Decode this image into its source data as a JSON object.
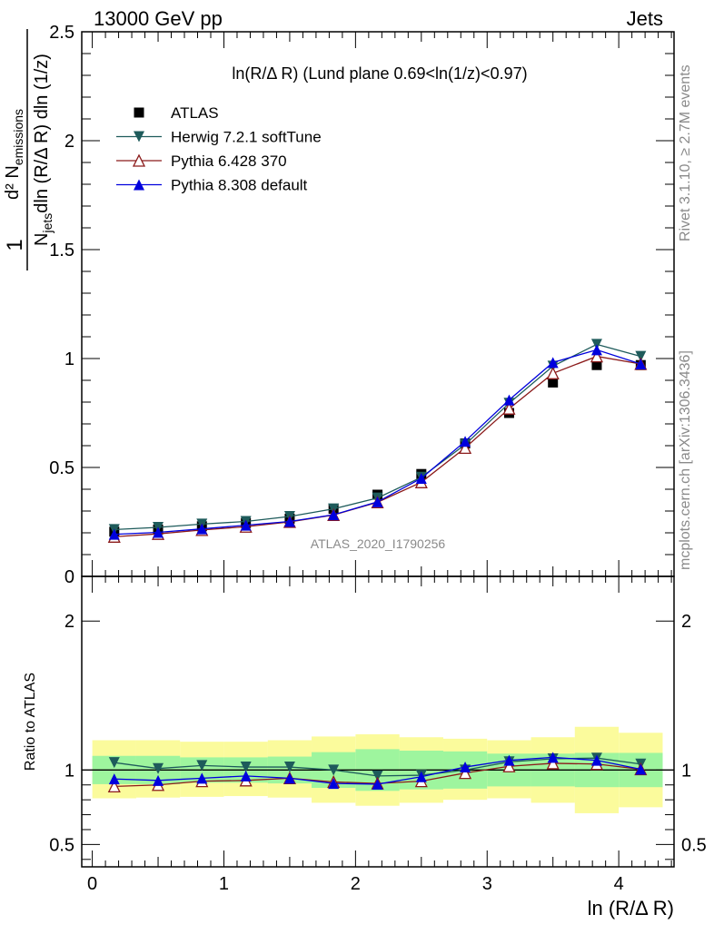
{
  "header": {
    "left": "13000 GeV pp",
    "right": "Jets"
  },
  "plot_title": "ln(R/Δ R) (Lund plane 0.69<ln(1/z)<0.97)",
  "side_labels": {
    "rivet": "Rivet 3.1.10, ≥ 2.7M events",
    "mcplots": "mcplots.cern.ch [arXiv:1306.3436]"
  },
  "watermark": "ATLAS_2020_I1790256",
  "main_ylabel": {
    "one": "1",
    "njets": "N",
    "njets_sub": "jets",
    "dln": "dln (R/Δ R) dln (1/z)",
    "numer": "d² N",
    "numer_sub": "emissions"
  },
  "ratio_ylabel": "Ratio to ATLAS",
  "xlabel": "ln (R/Δ R)",
  "colors": {
    "atlas": "#000000",
    "herwig": "#1e5b5b",
    "pythia6": "#8b1a1a",
    "pythia8": "#0000dd",
    "band_inner": "#9ef59e",
    "band_outer": "#fbfb9c"
  },
  "chart_data": {
    "type": "scatter",
    "x": [
      0.167,
      0.5,
      0.833,
      1.167,
      1.5,
      1.833,
      2.167,
      2.5,
      2.833,
      3.167,
      3.5,
      3.833,
      4.167
    ],
    "x_ticks": [
      "0",
      "1",
      "2",
      "3",
      "4"
    ],
    "xlim": [
      -0.08,
      4.42
    ],
    "main_ylim": [
      0,
      2.5
    ],
    "main_y_ticks": [
      "0",
      "0.5",
      "1",
      "1.5",
      "2",
      "2.5"
    ],
    "ratio_ylim": [
      0.35,
      2.3
    ],
    "ratio_y_ticks": [
      "0.5",
      "1",
      "2"
    ],
    "series": [
      {
        "name": "ATLAS",
        "marker": "square",
        "values": [
          0.205,
          0.215,
          0.23,
          0.245,
          0.265,
          0.31,
          0.375,
          0.47,
          0.61,
          0.75,
          0.89,
          0.97,
          0.97
        ]
      },
      {
        "name": "Herwig 7.2.1 softTune",
        "marker": "triangle-down",
        "values": [
          0.215,
          0.225,
          0.24,
          0.252,
          0.275,
          0.31,
          0.36,
          0.455,
          0.605,
          0.795,
          0.965,
          1.065,
          1.01
        ]
      },
      {
        "name": "Pythia 6.428 370",
        "marker": "triangle-up-open",
        "values": [
          0.182,
          0.195,
          0.213,
          0.228,
          0.25,
          0.282,
          0.34,
          0.432,
          0.59,
          0.77,
          0.932,
          1.01,
          0.975
        ]
      },
      {
        "name": "Pythia 8.308 default",
        "marker": "triangle-up",
        "values": [
          0.193,
          0.202,
          0.218,
          0.235,
          0.252,
          0.283,
          0.342,
          0.45,
          0.62,
          0.81,
          0.982,
          1.04,
          0.975
        ]
      }
    ],
    "ratio_series": [
      {
        "name": "Herwig 7.2.1 softTune",
        "values": [
          1.05,
          1.01,
          1.03,
          1.02,
          1.02,
          1.0,
          0.96,
          0.965,
          1.0,
          1.055,
          1.075,
          1.08,
          1.04
        ]
      },
      {
        "name": "Pythia 6.428 370",
        "values": [
          0.89,
          0.9,
          0.925,
          0.93,
          0.945,
          0.92,
          0.91,
          0.925,
          0.98,
          1.025,
          1.045,
          1.04,
          1.005
        ]
      },
      {
        "name": "Pythia 8.308 default",
        "values": [
          0.94,
          0.93,
          0.945,
          0.96,
          0.945,
          0.91,
          0.905,
          0.955,
          1.02,
          1.065,
          1.085,
          1.065,
          1.005
        ]
      }
    ],
    "band_inner": {
      "lo": [
        0.905,
        0.905,
        0.915,
        0.915,
        0.91,
        0.88,
        0.86,
        0.87,
        0.875,
        0.89,
        0.89,
        0.885,
        0.885
      ],
      "hi": [
        1.095,
        1.095,
        1.085,
        1.085,
        1.09,
        1.12,
        1.14,
        1.13,
        1.125,
        1.11,
        1.11,
        1.115,
        1.115
      ]
    },
    "band_outer": {
      "lo": [
        0.81,
        0.815,
        0.82,
        0.825,
        0.815,
        0.78,
        0.76,
        0.78,
        0.8,
        0.81,
        0.78,
        0.71,
        0.75
      ],
      "hi": [
        1.2,
        1.2,
        1.19,
        1.19,
        1.2,
        1.225,
        1.24,
        1.22,
        1.21,
        1.2,
        1.22,
        1.29,
        1.25
      ]
    }
  }
}
